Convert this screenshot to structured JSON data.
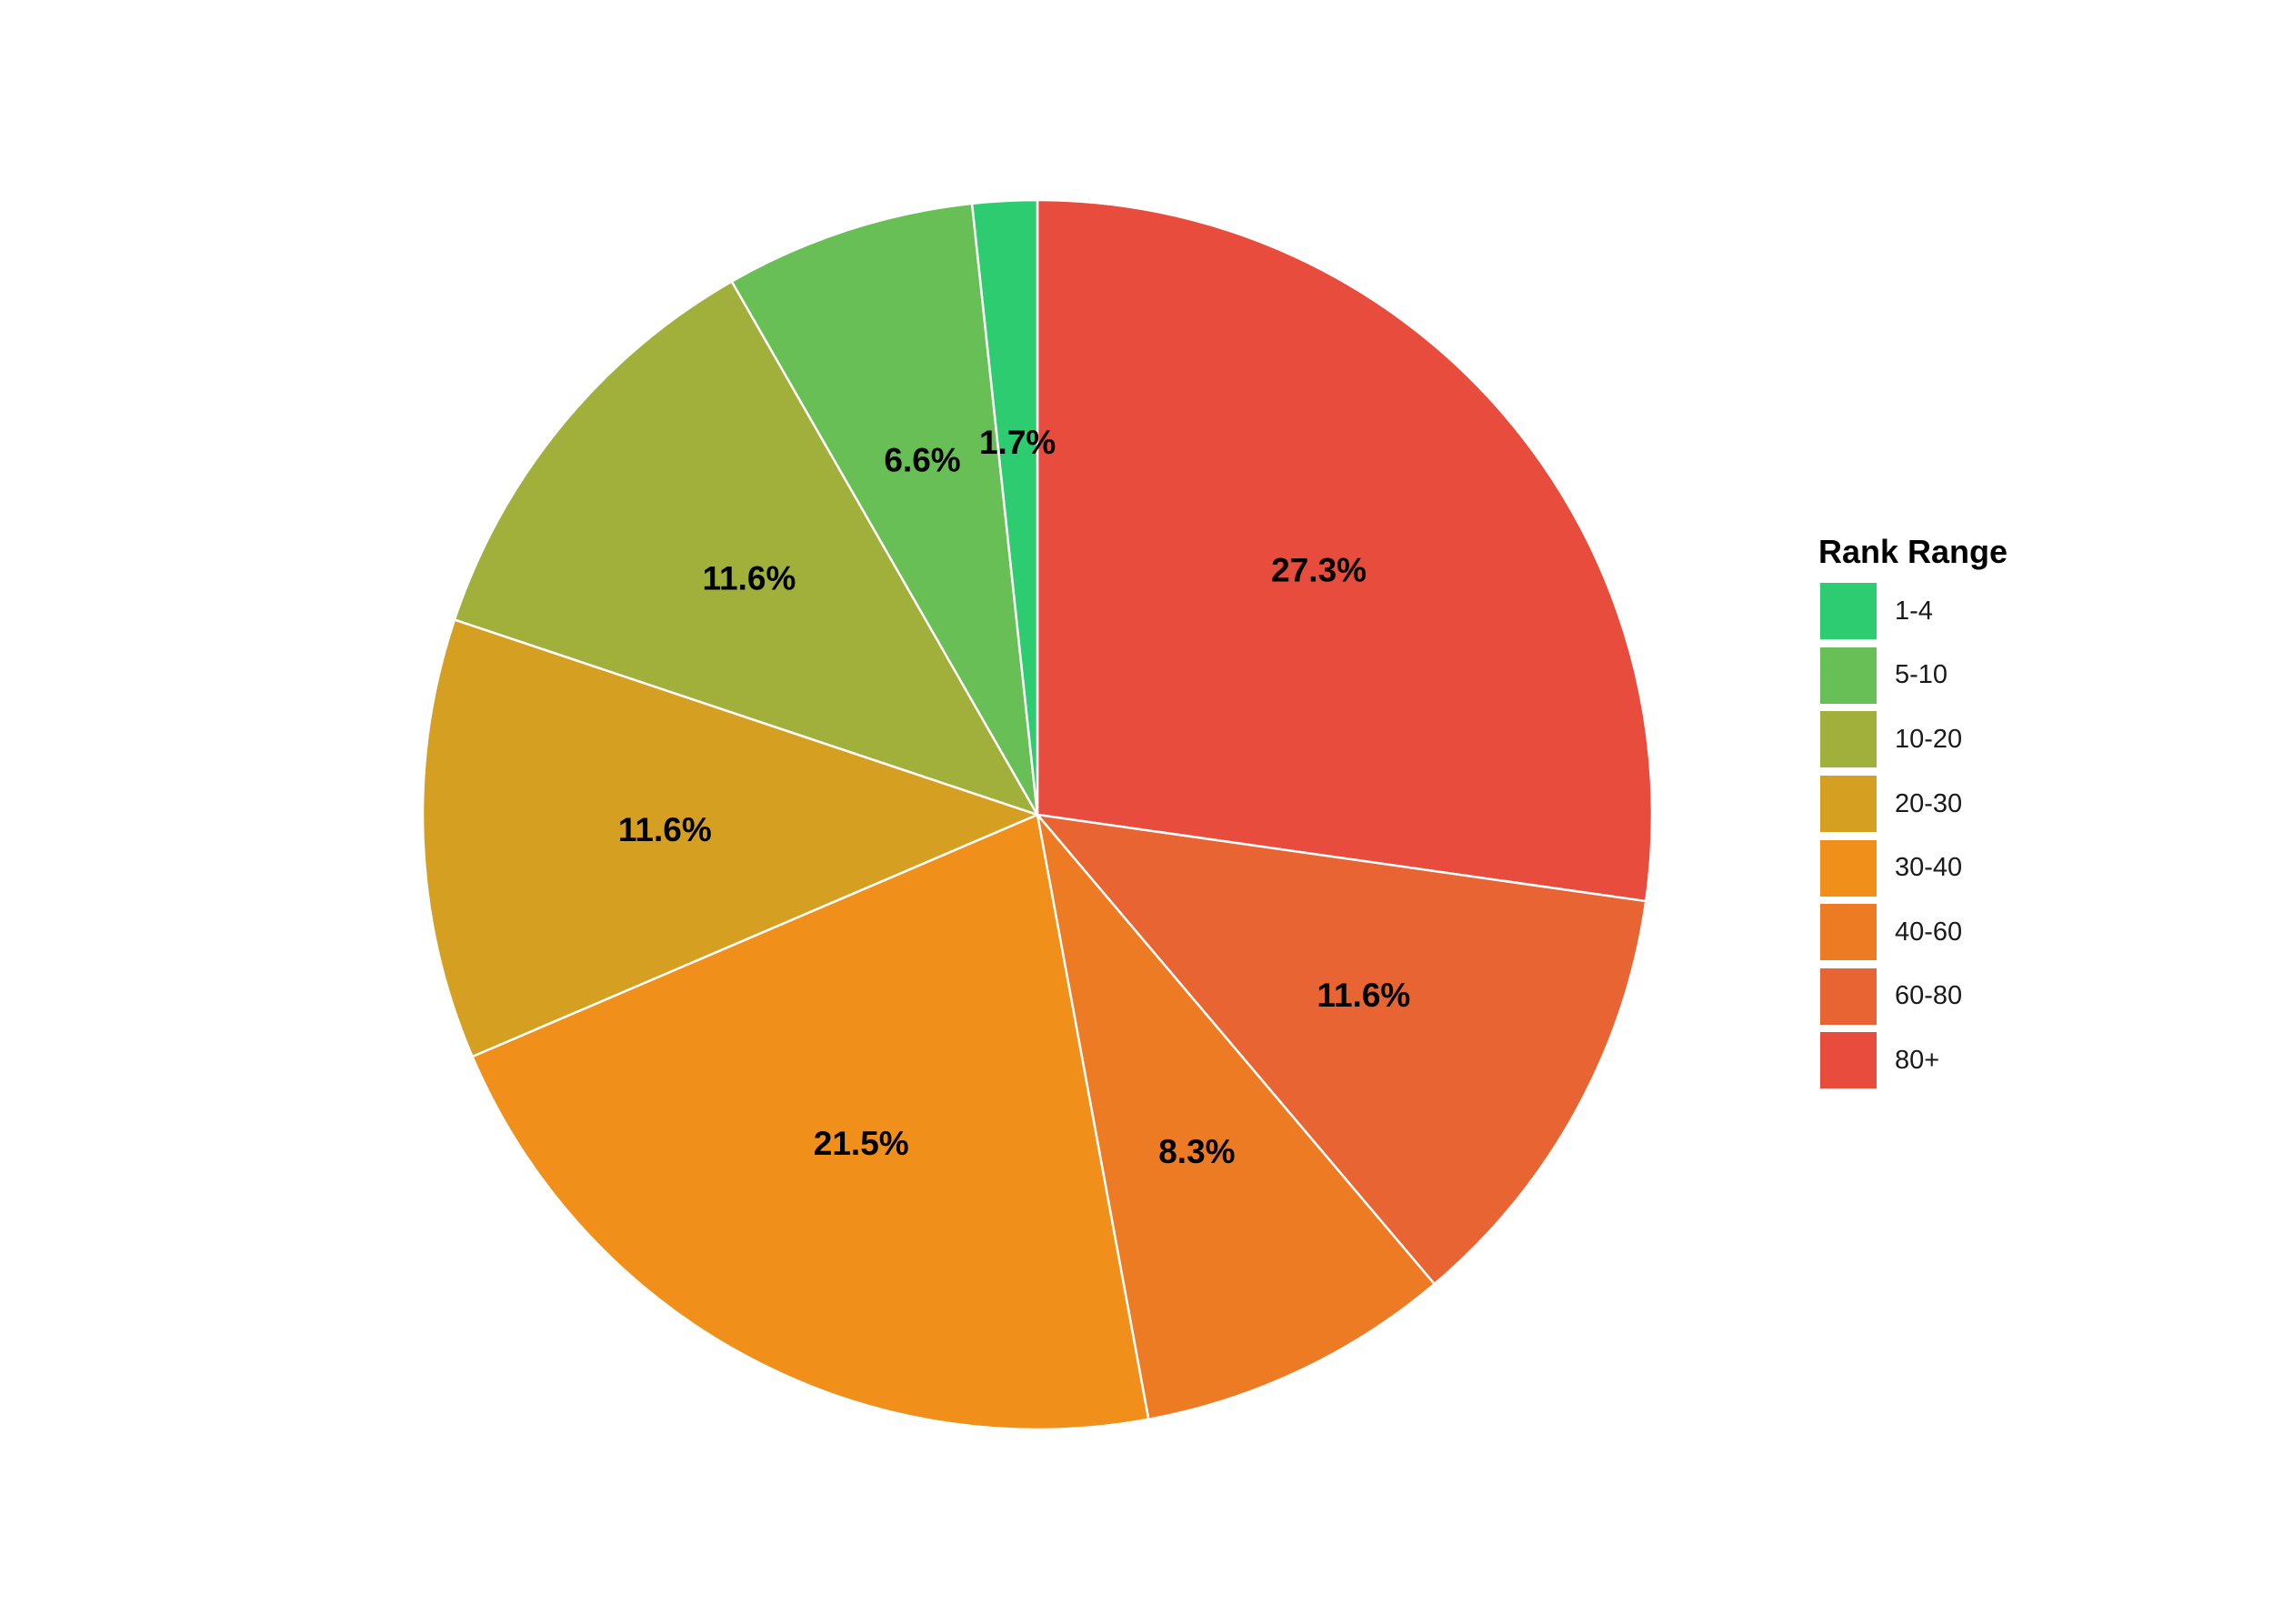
{
  "chart_data": {
    "type": "pie",
    "legend_title": "Rank Range",
    "legend_position": "right",
    "start_angle": "12 o'clock",
    "direction": "clockwise",
    "slices": [
      {
        "name": "80+",
        "value": 27.3,
        "label": "27.3%",
        "color": "#e74c3c"
      },
      {
        "name": "60-80",
        "value": 11.6,
        "label": "11.6%",
        "color": "#e86433"
      },
      {
        "name": "40-60",
        "value": 8.3,
        "label": "8.3%",
        "color": "#ec7b24"
      },
      {
        "name": "30-40",
        "value": 21.5,
        "label": "21.5%",
        "color": "#f0901a"
      },
      {
        "name": "20-30",
        "value": 11.6,
        "label": "11.6%",
        "color": "#d5a021"
      },
      {
        "name": "10-20",
        "value": 11.6,
        "label": "11.6%",
        "color": "#a0b03b"
      },
      {
        "name": "5-10",
        "value": 6.6,
        "label": "6.6%",
        "color": "#68bf56"
      },
      {
        "name": "1-4",
        "value": 1.7,
        "label": "1.7%",
        "color": "#2ecc71"
      }
    ],
    "legend_order": [
      "1-4",
      "5-10",
      "10-20",
      "20-30",
      "30-40",
      "40-60",
      "60-80",
      "80+"
    ]
  }
}
